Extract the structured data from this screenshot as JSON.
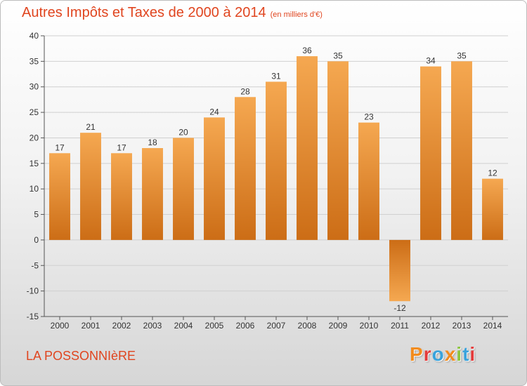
{
  "header": {
    "title": "Autres Impôts et Taxes de 2000 à 2014",
    "subtitle": "(en milliers d'€)"
  },
  "footer": {
    "place": "LA POSSONNIèRE",
    "brand": "Proxiti",
    "brand_colors": [
      "#f28c1e",
      "#e43b3b",
      "#3aa3dc",
      "#f28c1e",
      "#8cc63f",
      "#3aa3dc",
      "#e43b3b"
    ]
  },
  "chart_data": {
    "type": "bar",
    "categories": [
      "2000",
      "2001",
      "2002",
      "2003",
      "2004",
      "2005",
      "2006",
      "2007",
      "2008",
      "2009",
      "2010",
      "2011",
      "2012",
      "2013",
      "2014"
    ],
    "values": [
      17,
      21,
      17,
      18,
      20,
      24,
      28,
      31,
      36,
      35,
      23,
      -12,
      34,
      35,
      12
    ],
    "data_labels": [
      "17",
      "21",
      "17",
      "18",
      "20",
      "24",
      "28",
      "31",
      "36",
      "35",
      "23",
      "-12",
      "34",
      "35",
      "12"
    ],
    "title": "Autres Impôts et Taxes de 2000 à 2014",
    "ylim": [
      -15,
      40
    ],
    "yticks": [
      -15,
      -10,
      -5,
      0,
      5,
      10,
      15,
      20,
      25,
      30,
      35,
      40
    ],
    "ytick_labels": [
      "-15",
      "-10",
      "-5",
      "0",
      "5",
      "10",
      "15",
      "20",
      "25",
      "30",
      "35",
      "40"
    ],
    "grid": true,
    "bar_color": "#f0a048",
    "bar_color_dark": "#cc6d16",
    "text_color": "#e0451f"
  }
}
